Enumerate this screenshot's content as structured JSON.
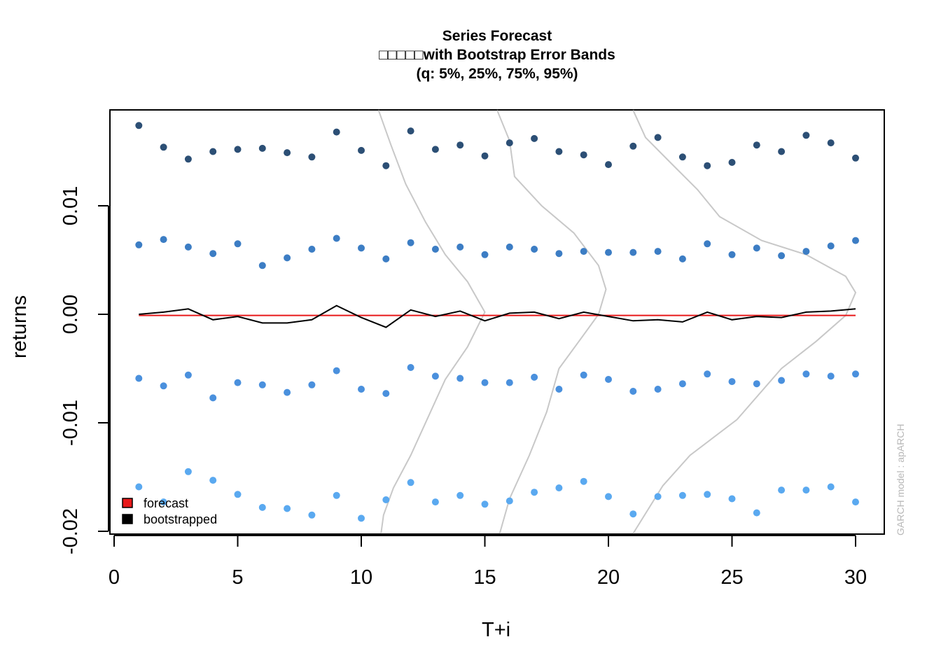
{
  "chart_data": {
    "type": "scatter",
    "title_lines": [
      "Series Forecast",
      "□□□□□with Bootstrap Error Bands",
      "(q: 5%, 25%, 75%, 95%)"
    ],
    "xlabel": "T+i",
    "ylabel": "returns",
    "xlim": [
      0,
      31
    ],
    "ylim": [
      -0.0205,
      0.0188
    ],
    "x_ticks": [
      0,
      5,
      10,
      15,
      20,
      25,
      30
    ],
    "y_ticks": [
      -0.02,
      -0.01,
      0.0,
      0.01
    ],
    "y_tick_labels": [
      "-0.02",
      "-0.01",
      "0.00",
      "0.01"
    ],
    "grid": false,
    "legend_position": "bottom-left",
    "legend": [
      {
        "label": "forecast",
        "color": "#e8191a"
      },
      {
        "label": "bootstrapped",
        "color": "#000000"
      }
    ],
    "watermark": "GARCH model : apARCH",
    "x": [
      1,
      2,
      3,
      4,
      5,
      6,
      7,
      8,
      9,
      10,
      11,
      12,
      13,
      14,
      15,
      16,
      17,
      18,
      19,
      20,
      21,
      22,
      23,
      24,
      25,
      26,
      27,
      28,
      29,
      30
    ],
    "series": [
      {
        "role": "forecast",
        "type": "line",
        "color": "#e8191a",
        "values": [
          -0.0001,
          -0.0001,
          -0.0001,
          -0.0001,
          -0.0001,
          -0.0001,
          -0.0001,
          -0.0001,
          -0.0001,
          -0.0001,
          -0.0001,
          -0.0001,
          -0.0001,
          -0.0001,
          -0.0001,
          -0.0001,
          -0.0001,
          -0.0001,
          -0.0001,
          -0.0001,
          -0.0001,
          -0.0001,
          -0.0001,
          -0.0001,
          -0.0001,
          -0.0001,
          -0.0001,
          -0.0001,
          -0.0001,
          -0.0001
        ]
      },
      {
        "role": "bootstrapped",
        "type": "line",
        "color": "#000000",
        "values": [
          0.0,
          0.0002,
          0.0005,
          -0.0005,
          -0.0002,
          -0.0008,
          -0.0008,
          -0.0005,
          0.0008,
          -0.0003,
          -0.0012,
          0.0004,
          -0.0002,
          0.0003,
          -0.0006,
          0.0001,
          0.0002,
          -0.0004,
          0.0002,
          -0.0002,
          -0.0006,
          -0.0005,
          -0.0007,
          0.0002,
          -0.0005,
          -0.0002,
          -0.0003,
          0.0002,
          0.0003,
          0.0005
        ]
      },
      {
        "role": "q95",
        "type": "points",
        "color": "#2c4f75",
        "values": [
          0.0174,
          0.0154,
          0.0143,
          0.015,
          0.0152,
          0.0153,
          0.0149,
          0.0145,
          0.0168,
          0.0151,
          0.0137,
          0.0169,
          0.0152,
          0.0156,
          0.0146,
          0.0158,
          0.0162,
          0.015,
          0.0147,
          0.0138,
          0.0155,
          0.0163,
          0.0145,
          0.0137,
          0.014,
          0.0156,
          0.015,
          0.0165,
          0.0158,
          0.0144
        ]
      },
      {
        "role": "q75",
        "type": "points",
        "color": "#3c7dc4",
        "values": [
          0.0064,
          0.0069,
          0.0062,
          0.0056,
          0.0065,
          0.0045,
          0.0052,
          0.006,
          0.007,
          0.0061,
          0.0051,
          0.0066,
          0.006,
          0.0062,
          0.0055,
          0.0062,
          0.006,
          0.0056,
          0.0058,
          0.0057,
          0.0057,
          0.0058,
          0.0051,
          0.0065,
          0.0055,
          0.0061,
          0.0054,
          0.0058,
          0.0063,
          0.0068
        ]
      },
      {
        "role": "q25",
        "type": "points",
        "color": "#4a90dd",
        "values": [
          -0.0059,
          -0.0066,
          -0.0056,
          -0.0077,
          -0.0063,
          -0.0065,
          -0.0072,
          -0.0065,
          -0.0052,
          -0.0069,
          -0.0073,
          -0.0049,
          -0.0057,
          -0.0059,
          -0.0063,
          -0.0063,
          -0.0058,
          -0.0069,
          -0.0056,
          -0.006,
          -0.0071,
          -0.0069,
          -0.0064,
          -0.0055,
          -0.0062,
          -0.0064,
          -0.0061,
          -0.0055,
          -0.0057,
          -0.0055
        ]
      },
      {
        "role": "q05",
        "type": "points",
        "color": "#5aa9f0",
        "values": [
          -0.0159,
          -0.0173,
          -0.0145,
          -0.0153,
          -0.0166,
          -0.0178,
          -0.0179,
          -0.0185,
          -0.0167,
          -0.0188,
          -0.0171,
          -0.0155,
          -0.0173,
          -0.0167,
          -0.0175,
          -0.0172,
          -0.0164,
          -0.016,
          -0.0154,
          -0.0168,
          -0.0184,
          -0.0168,
          -0.0167,
          -0.0166,
          -0.017,
          -0.0183,
          -0.0162,
          -0.0162,
          -0.0159,
          -0.0173
        ]
      }
    ],
    "density_curves": [
      {
        "color": "#c8c8c8",
        "points": [
          [
            10.7,
            0.0188
          ],
          [
            11.2,
            0.0156
          ],
          [
            11.8,
            0.012
          ],
          [
            12.6,
            0.0085
          ],
          [
            13.4,
            0.0055
          ],
          [
            14.3,
            0.003
          ],
          [
            15.0,
            0.0002
          ],
          [
            14.3,
            -0.003
          ],
          [
            13.4,
            -0.006
          ],
          [
            12.7,
            -0.0095
          ],
          [
            12.0,
            -0.013
          ],
          [
            11.3,
            -0.016
          ],
          [
            10.9,
            -0.0185
          ],
          [
            10.8,
            -0.0202
          ]
        ]
      },
      {
        "color": "#c8c8c8",
        "points": [
          [
            15.5,
            0.0188
          ],
          [
            16.0,
            0.016
          ],
          [
            16.2,
            0.0127
          ],
          [
            17.3,
            0.01
          ],
          [
            18.6,
            0.0075
          ],
          [
            19.6,
            0.0045
          ],
          [
            19.9,
            0.0023
          ],
          [
            19.6,
            0.0
          ],
          [
            18.9,
            -0.0022
          ],
          [
            18.0,
            -0.005
          ],
          [
            17.5,
            -0.009
          ],
          [
            16.8,
            -0.013
          ],
          [
            16.0,
            -0.017
          ],
          [
            15.6,
            -0.0202
          ]
        ]
      },
      {
        "color": "#c8c8c8",
        "points": [
          [
            21.0,
            0.0188
          ],
          [
            21.5,
            0.0163
          ],
          [
            22.5,
            0.014
          ],
          [
            23.6,
            0.0115
          ],
          [
            24.5,
            0.009
          ],
          [
            26.2,
            0.0068
          ],
          [
            28.0,
            0.0055
          ],
          [
            29.6,
            0.0035
          ],
          [
            30.0,
            0.002
          ],
          [
            29.6,
            -0.0001
          ],
          [
            28.4,
            -0.0025
          ],
          [
            27.0,
            -0.005
          ],
          [
            25.2,
            -0.0097
          ],
          [
            23.3,
            -0.013
          ],
          [
            22.2,
            -0.0158
          ],
          [
            21.6,
            -0.018
          ],
          [
            21.0,
            -0.0202
          ]
        ]
      }
    ]
  }
}
